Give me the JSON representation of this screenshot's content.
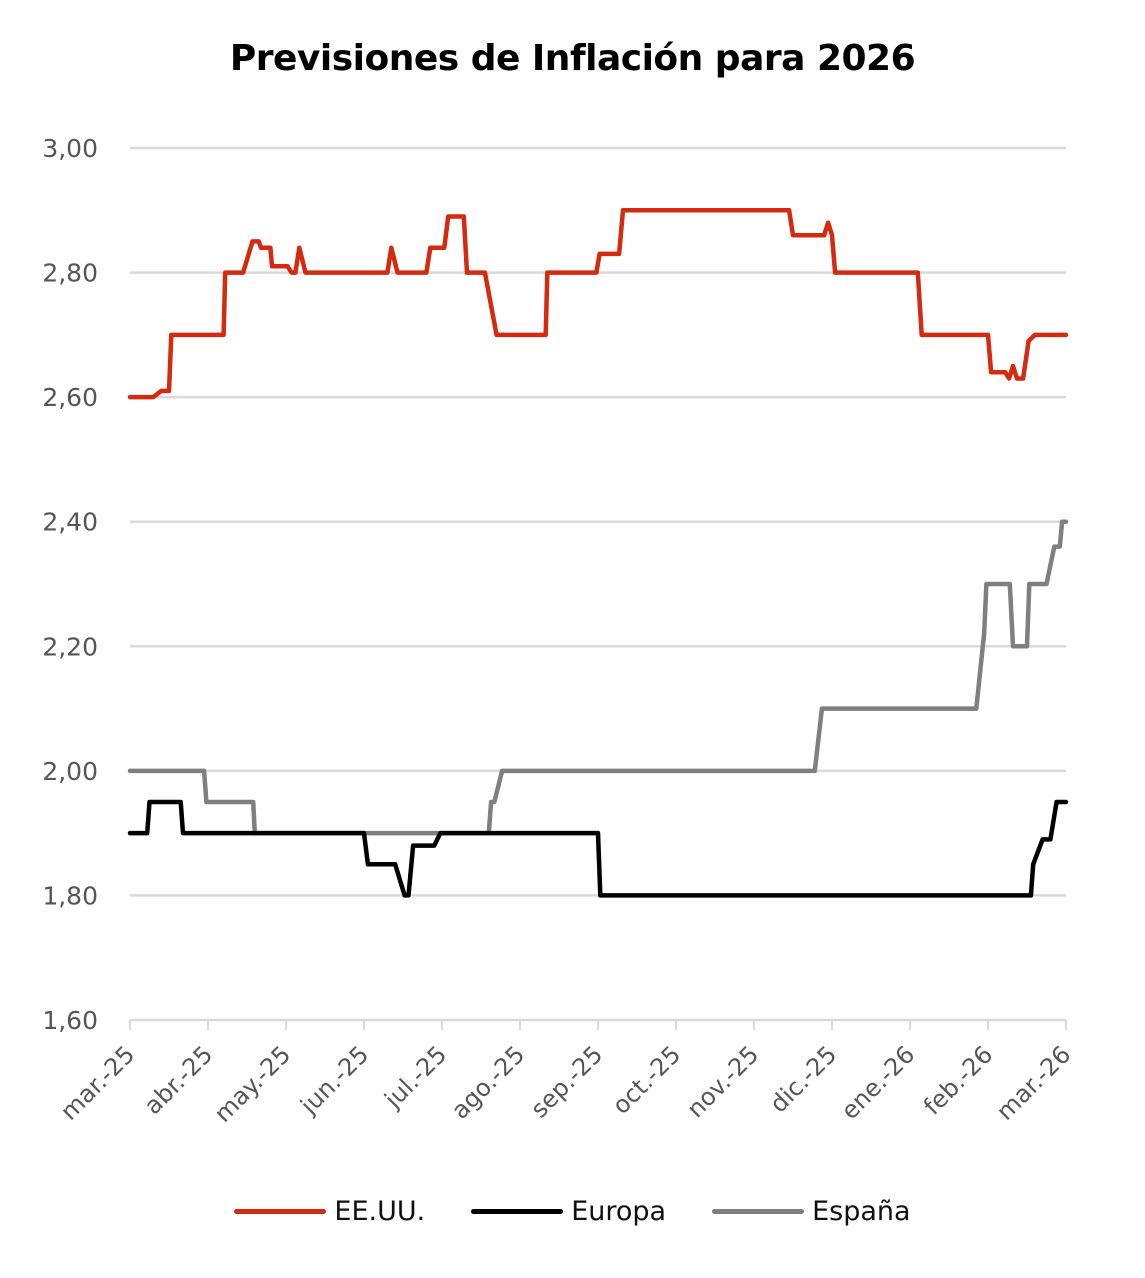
{
  "chart_data": {
    "type": "line",
    "title": "Previsiones de Inflación para 2026",
    "xlabel": "",
    "ylabel": "",
    "ylim": [
      1.6,
      3.0
    ],
    "yticks": [
      1.6,
      1.8,
      2.0,
      2.2,
      2.4,
      2.6,
      2.8,
      3.0
    ],
    "ytick_labels": [
      "1,60",
      "1,80",
      "2,00",
      "2,20",
      "2,40",
      "2,60",
      "2,80",
      "3,00"
    ],
    "xlim": [
      0,
      12
    ],
    "xtick_labels": [
      "mar.-25",
      "abr.-25",
      "may.-25",
      "jun.-25",
      "jul.-25",
      "ago.-25",
      "sep.-25",
      "oct.-25",
      "nov.-25",
      "dic.-25",
      "ene.-26",
      "feb.-26",
      "mar.-26"
    ],
    "x_units": "months since mar.-25",
    "grid": true,
    "legend_position": "bottom",
    "series": [
      {
        "name": "EE.UU.",
        "color": "#d42a10",
        "points": [
          [
            0,
            2.6
          ],
          [
            0.3,
            2.6
          ],
          [
            0.4,
            2.61
          ],
          [
            0.5,
            2.61
          ],
          [
            0.53,
            2.7
          ],
          [
            1.2,
            2.7
          ],
          [
            1.22,
            2.8
          ],
          [
            1.45,
            2.8
          ],
          [
            1.57,
            2.85
          ],
          [
            1.65,
            2.85
          ],
          [
            1.68,
            2.84
          ],
          [
            1.8,
            2.84
          ],
          [
            1.82,
            2.81
          ],
          [
            2.02,
            2.81
          ],
          [
            2.07,
            2.8
          ],
          [
            2.12,
            2.8
          ],
          [
            2.17,
            2.84
          ],
          [
            2.25,
            2.8
          ],
          [
            3.3,
            2.8
          ],
          [
            3.35,
            2.84
          ],
          [
            3.43,
            2.8
          ],
          [
            3.8,
            2.8
          ],
          [
            3.85,
            2.84
          ],
          [
            4.03,
            2.84
          ],
          [
            4.08,
            2.89
          ],
          [
            4.28,
            2.89
          ],
          [
            4.32,
            2.8
          ],
          [
            4.55,
            2.8
          ],
          [
            4.7,
            2.7
          ],
          [
            5.33,
            2.7
          ],
          [
            5.35,
            2.8
          ],
          [
            5.98,
            2.8
          ],
          [
            6.02,
            2.83
          ],
          [
            6.27,
            2.83
          ],
          [
            6.32,
            2.9
          ],
          [
            8.45,
            2.9
          ],
          [
            8.5,
            2.86
          ],
          [
            8.9,
            2.86
          ],
          [
            8.95,
            2.88
          ],
          [
            9.0,
            2.86
          ],
          [
            9.04,
            2.8
          ],
          [
            10.1,
            2.8
          ],
          [
            10.15,
            2.7
          ],
          [
            11.0,
            2.7
          ],
          [
            11.04,
            2.64
          ],
          [
            11.22,
            2.64
          ],
          [
            11.27,
            2.63
          ],
          [
            11.32,
            2.65
          ],
          [
            11.37,
            2.63
          ],
          [
            11.45,
            2.63
          ],
          [
            11.52,
            2.69
          ],
          [
            11.6,
            2.7
          ],
          [
            12.0,
            2.7
          ]
        ]
      },
      {
        "name": "Europa",
        "color": "#000000",
        "points": [
          [
            0,
            1.9
          ],
          [
            0.22,
            1.9
          ],
          [
            0.25,
            1.95
          ],
          [
            0.65,
            1.95
          ],
          [
            0.68,
            1.9
          ],
          [
            3.0,
            1.9
          ],
          [
            3.05,
            1.85
          ],
          [
            3.4,
            1.85
          ],
          [
            3.52,
            1.8
          ],
          [
            3.57,
            1.8
          ],
          [
            3.63,
            1.88
          ],
          [
            3.9,
            1.88
          ],
          [
            3.98,
            1.9
          ],
          [
            6.0,
            1.9
          ],
          [
            6.03,
            1.8
          ],
          [
            11.55,
            1.8
          ],
          [
            11.58,
            1.85
          ],
          [
            11.7,
            1.89
          ],
          [
            11.8,
            1.89
          ],
          [
            11.88,
            1.95
          ],
          [
            12.0,
            1.95
          ]
        ]
      },
      {
        "name": "España",
        "color": "#7f7f7f",
        "points": [
          [
            0,
            2.0
          ],
          [
            0.95,
            2.0
          ],
          [
            0.98,
            1.95
          ],
          [
            1.58,
            1.95
          ],
          [
            1.6,
            1.9
          ],
          [
            4.6,
            1.9
          ],
          [
            4.63,
            1.95
          ],
          [
            4.67,
            1.95
          ],
          [
            4.77,
            2.0
          ],
          [
            8.78,
            2.0
          ],
          [
            8.87,
            2.1
          ],
          [
            10.85,
            2.1
          ],
          [
            10.95,
            2.22
          ],
          [
            10.98,
            2.3
          ],
          [
            11.28,
            2.3
          ],
          [
            11.32,
            2.2
          ],
          [
            11.5,
            2.2
          ],
          [
            11.53,
            2.3
          ],
          [
            11.75,
            2.3
          ],
          [
            11.85,
            2.36
          ],
          [
            11.92,
            2.36
          ],
          [
            11.95,
            2.4
          ],
          [
            12.0,
            2.4
          ]
        ]
      }
    ]
  }
}
